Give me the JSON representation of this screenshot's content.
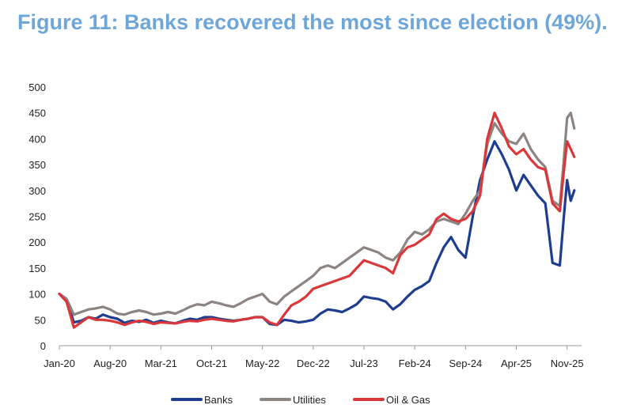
{
  "chart_data": {
    "type": "line",
    "title": "Figure 11: Banks recovered the most since election (49%).",
    "xlabel": "",
    "ylabel": "",
    "ylim": [
      0,
      500
    ],
    "yticks": [
      0,
      50,
      100,
      150,
      200,
      250,
      300,
      350,
      400,
      450,
      500
    ],
    "x_tick_labels": [
      "Jan-20",
      "Aug-20",
      "Mar-21",
      "Oct-21",
      "May-22",
      "Dec-22",
      "Jul-23",
      "Feb-24",
      "Sep-24",
      "Apr-25",
      "Nov-25"
    ],
    "x_tick_positions": [
      0,
      7,
      14,
      21,
      28,
      35,
      42,
      49,
      56,
      63,
      70
    ],
    "xlim": [
      0,
      72
    ],
    "legend_position": "bottom-center",
    "series": [
      {
        "name": "Banks",
        "color": "#1f3d8f",
        "points": [
          [
            0,
            100
          ],
          [
            1,
            90
          ],
          [
            2,
            45
          ],
          [
            3,
            48
          ],
          [
            4,
            55
          ],
          [
            5,
            52
          ],
          [
            6,
            60
          ],
          [
            7,
            55
          ],
          [
            8,
            52
          ],
          [
            9,
            44
          ],
          [
            10,
            48
          ],
          [
            11,
            46
          ],
          [
            12,
            50
          ],
          [
            13,
            44
          ],
          [
            14,
            48
          ],
          [
            15,
            45
          ],
          [
            16,
            43
          ],
          [
            17,
            48
          ],
          [
            18,
            52
          ],
          [
            19,
            50
          ],
          [
            20,
            55
          ],
          [
            21,
            55
          ],
          [
            22,
            52
          ],
          [
            23,
            50
          ],
          [
            24,
            48
          ],
          [
            25,
            50
          ],
          [
            26,
            52
          ],
          [
            27,
            55
          ],
          [
            28,
            55
          ],
          [
            29,
            42
          ],
          [
            30,
            40
          ],
          [
            31,
            50
          ],
          [
            32,
            48
          ],
          [
            33,
            45
          ],
          [
            34,
            47
          ],
          [
            35,
            50
          ],
          [
            36,
            62
          ],
          [
            37,
            70
          ],
          [
            38,
            68
          ],
          [
            39,
            65
          ],
          [
            40,
            72
          ],
          [
            41,
            80
          ],
          [
            42,
            95
          ],
          [
            43,
            92
          ],
          [
            44,
            90
          ],
          [
            45,
            85
          ],
          [
            46,
            70
          ],
          [
            47,
            80
          ],
          [
            48,
            95
          ],
          [
            49,
            108
          ],
          [
            50,
            115
          ],
          [
            51,
            125
          ],
          [
            52,
            160
          ],
          [
            53,
            190
          ],
          [
            54,
            210
          ],
          [
            55,
            185
          ],
          [
            56,
            170
          ],
          [
            57,
            250
          ],
          [
            58,
            320
          ],
          [
            59,
            360
          ],
          [
            60,
            395
          ],
          [
            61,
            370
          ],
          [
            62,
            340
          ],
          [
            63,
            300
          ],
          [
            64,
            330
          ],
          [
            65,
            310
          ],
          [
            66,
            290
          ],
          [
            67,
            275
          ],
          [
            68,
            160
          ],
          [
            69,
            155
          ],
          [
            69.5,
            240
          ],
          [
            70,
            320
          ],
          [
            70.5,
            280
          ],
          [
            71,
            300
          ]
        ]
      },
      {
        "name": "Utilities",
        "color": "#8c8480",
        "points": [
          [
            0,
            100
          ],
          [
            1,
            90
          ],
          [
            2,
            60
          ],
          [
            3,
            65
          ],
          [
            4,
            70
          ],
          [
            5,
            72
          ],
          [
            6,
            75
          ],
          [
            7,
            70
          ],
          [
            8,
            62
          ],
          [
            9,
            60
          ],
          [
            10,
            65
          ],
          [
            11,
            68
          ],
          [
            12,
            65
          ],
          [
            13,
            60
          ],
          [
            14,
            62
          ],
          [
            15,
            65
          ],
          [
            16,
            62
          ],
          [
            17,
            68
          ],
          [
            18,
            75
          ],
          [
            19,
            80
          ],
          [
            20,
            78
          ],
          [
            21,
            85
          ],
          [
            22,
            82
          ],
          [
            23,
            78
          ],
          [
            24,
            75
          ],
          [
            25,
            82
          ],
          [
            26,
            90
          ],
          [
            27,
            95
          ],
          [
            28,
            100
          ],
          [
            29,
            85
          ],
          [
            30,
            80
          ],
          [
            31,
            95
          ],
          [
            32,
            105
          ],
          [
            33,
            115
          ],
          [
            34,
            125
          ],
          [
            35,
            135
          ],
          [
            36,
            150
          ],
          [
            37,
            155
          ],
          [
            38,
            150
          ],
          [
            39,
            160
          ],
          [
            40,
            170
          ],
          [
            41,
            180
          ],
          [
            42,
            190
          ],
          [
            43,
            185
          ],
          [
            44,
            180
          ],
          [
            45,
            170
          ],
          [
            46,
            165
          ],
          [
            47,
            180
          ],
          [
            48,
            205
          ],
          [
            49,
            220
          ],
          [
            50,
            215
          ],
          [
            51,
            225
          ],
          [
            52,
            240
          ],
          [
            53,
            245
          ],
          [
            54,
            240
          ],
          [
            55,
            235
          ],
          [
            56,
            255
          ],
          [
            57,
            280
          ],
          [
            58,
            300
          ],
          [
            59,
            390
          ],
          [
            60,
            430
          ],
          [
            61,
            410
          ],
          [
            62,
            395
          ],
          [
            63,
            390
          ],
          [
            64,
            410
          ],
          [
            65,
            380
          ],
          [
            66,
            360
          ],
          [
            67,
            345
          ],
          [
            68,
            280
          ],
          [
            69,
            270
          ],
          [
            69.5,
            350
          ],
          [
            70,
            440
          ],
          [
            70.5,
            450
          ],
          [
            71,
            420
          ]
        ]
      },
      {
        "name": "Oil & Gas",
        "color": "#d9383a",
        "points": [
          [
            0,
            100
          ],
          [
            1,
            85
          ],
          [
            2,
            35
          ],
          [
            3,
            45
          ],
          [
            4,
            55
          ],
          [
            5,
            50
          ],
          [
            6,
            50
          ],
          [
            7,
            48
          ],
          [
            8,
            45
          ],
          [
            9,
            40
          ],
          [
            10,
            45
          ],
          [
            11,
            48
          ],
          [
            12,
            46
          ],
          [
            13,
            42
          ],
          [
            14,
            45
          ],
          [
            15,
            44
          ],
          [
            16,
            43
          ],
          [
            17,
            46
          ],
          [
            18,
            48
          ],
          [
            19,
            47
          ],
          [
            20,
            50
          ],
          [
            21,
            52
          ],
          [
            22,
            50
          ],
          [
            23,
            48
          ],
          [
            24,
            47
          ],
          [
            25,
            50
          ],
          [
            26,
            52
          ],
          [
            27,
            55
          ],
          [
            28,
            55
          ],
          [
            29,
            45
          ],
          [
            30,
            40
          ],
          [
            31,
            60
          ],
          [
            32,
            78
          ],
          [
            33,
            85
          ],
          [
            34,
            95
          ],
          [
            35,
            110
          ],
          [
            36,
            115
          ],
          [
            37,
            120
          ],
          [
            38,
            125
          ],
          [
            39,
            130
          ],
          [
            40,
            135
          ],
          [
            41,
            150
          ],
          [
            42,
            165
          ],
          [
            43,
            160
          ],
          [
            44,
            155
          ],
          [
            45,
            150
          ],
          [
            46,
            140
          ],
          [
            47,
            175
          ],
          [
            48,
            190
          ],
          [
            49,
            195
          ],
          [
            50,
            205
          ],
          [
            51,
            215
          ],
          [
            52,
            245
          ],
          [
            53,
            255
          ],
          [
            54,
            245
          ],
          [
            55,
            240
          ],
          [
            56,
            245
          ],
          [
            57,
            260
          ],
          [
            58,
            290
          ],
          [
            59,
            400
          ],
          [
            60,
            450
          ],
          [
            61,
            420
          ],
          [
            62,
            385
          ],
          [
            63,
            370
          ],
          [
            64,
            380
          ],
          [
            65,
            360
          ],
          [
            66,
            345
          ],
          [
            67,
            340
          ],
          [
            68,
            275
          ],
          [
            69,
            260
          ],
          [
            69.5,
            330
          ],
          [
            70,
            395
          ],
          [
            70.5,
            380
          ],
          [
            71,
            365
          ]
        ]
      }
    ]
  }
}
